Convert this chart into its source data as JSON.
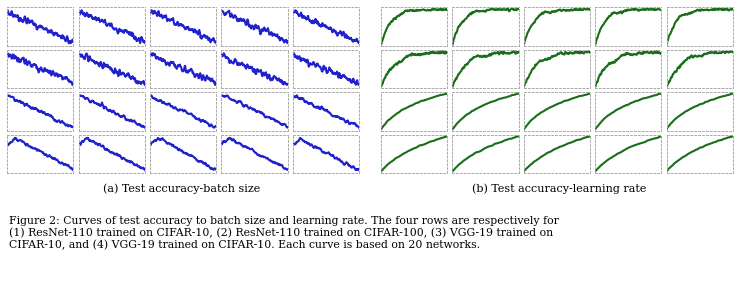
{
  "blue_color": "#2222cc",
  "green_color": "#1a6e1a",
  "bg_color": "#ffffff",
  "caption_label_a": "(a) Test accuracy-batch size",
  "caption_label_b": "(b) Test accuracy-learning rate",
  "figure_caption": "Figure 2: Curves of test accuracy to batch size and learning rate. The four rows are respectively for\n(1) ResNet-110 trained on CIFAR-10, (2) ResNet-110 trained on CIFAR-100, (3) VGG-19 trained on\nCIFAR-10, and (4) VGG-19 trained on CIFAR-10. Each curve is based on 20 networks.",
  "n_rows": 4,
  "n_cols": 5,
  "fig_width": 7.4,
  "fig_height": 2.96,
  "label_fontsize": 8.0,
  "caption_fontsize": 7.8
}
